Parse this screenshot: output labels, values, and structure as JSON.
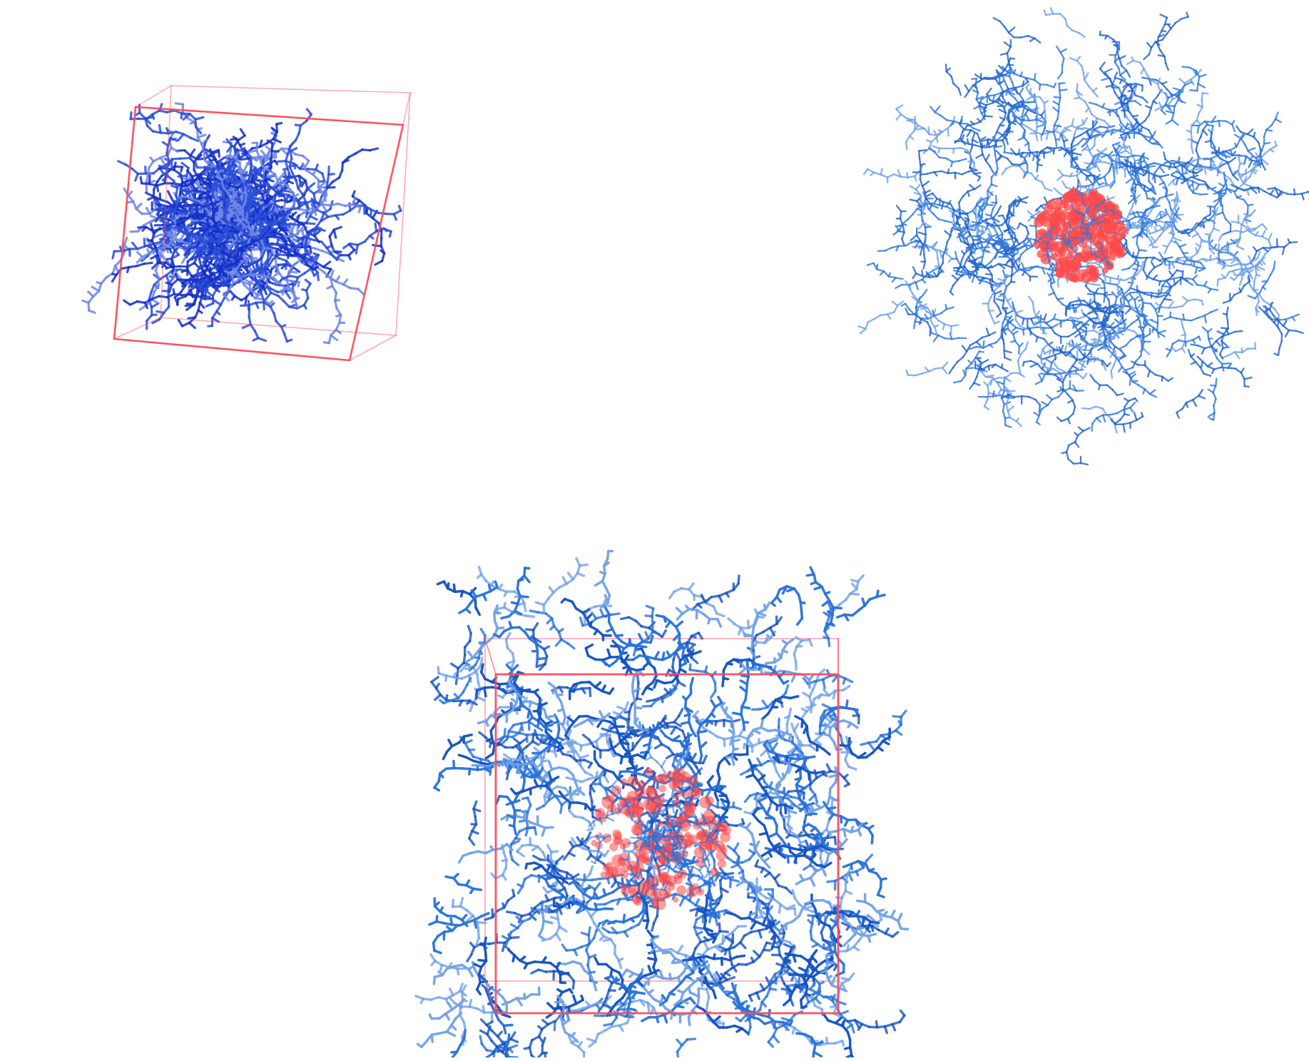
{
  "colors": {
    "background": "#ffffff",
    "chain_dark": "#1f3fd1",
    "chain_mid": "#2f6fd8",
    "chain_light": "#6a9be6",
    "box_edge": "#ff4a5a",
    "core": "#ff4b4b"
  },
  "panels": [
    {
      "id": "top-left",
      "description_name": "molecular-snapshot-polymer-box"
    },
    {
      "id": "top-right",
      "description_name": "molecular-snapshot-micelle-core"
    },
    {
      "id": "bottom",
      "description_name": "molecular-snapshot-core-in-box"
    }
  ]
}
